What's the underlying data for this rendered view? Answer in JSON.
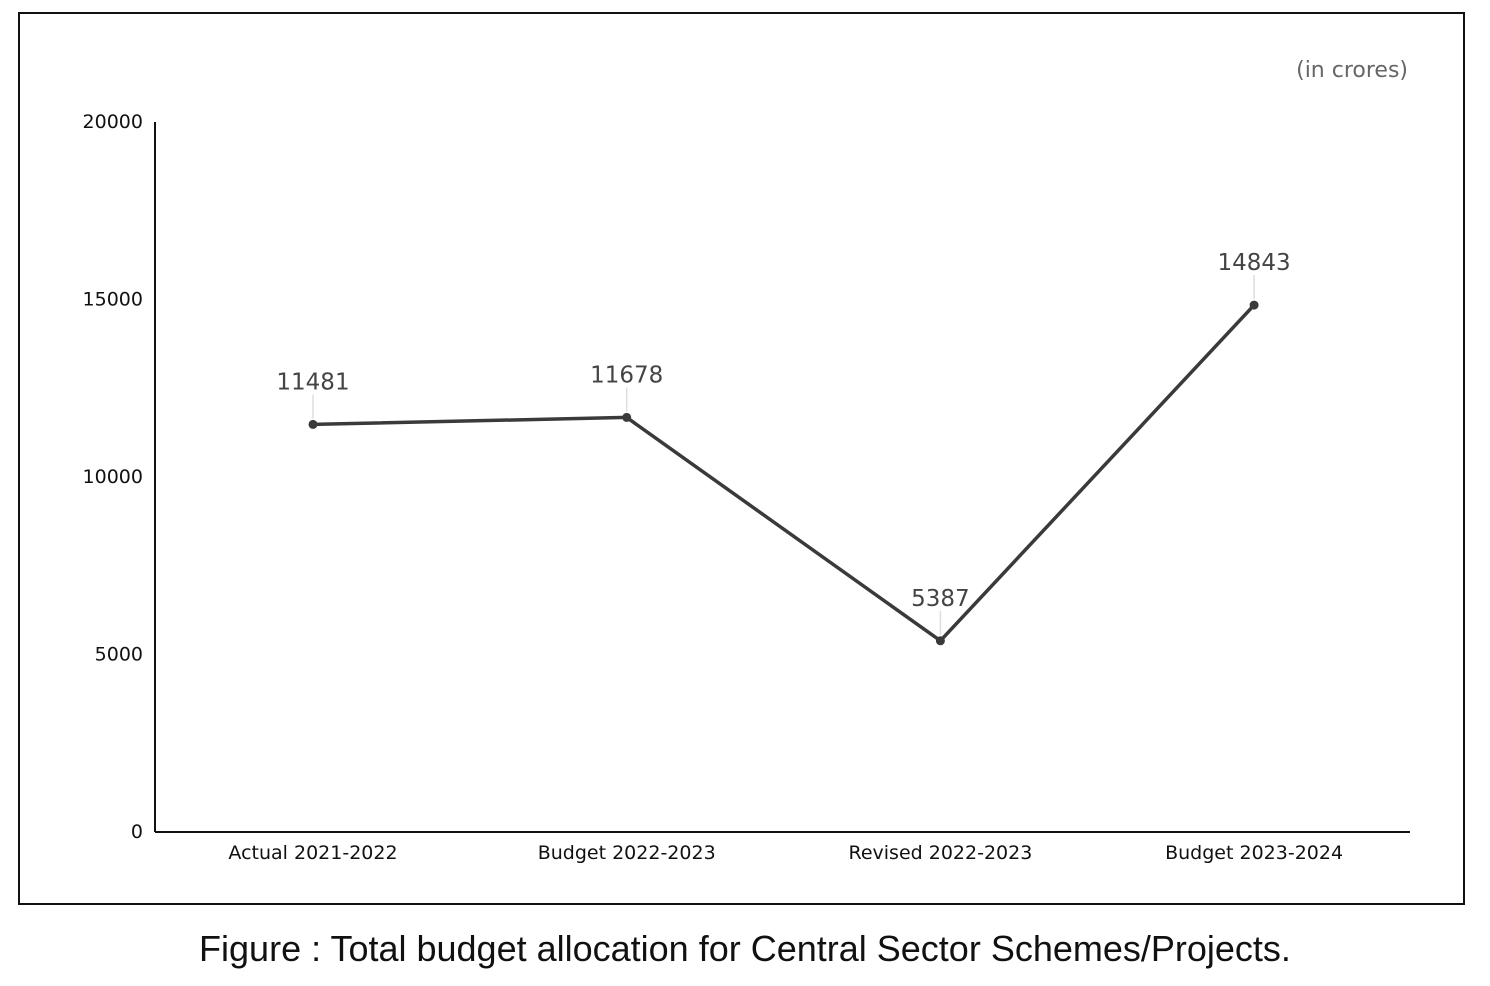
{
  "chart_data": {
    "type": "line",
    "title": "",
    "unit_note": "(in crores)",
    "xlabel": "",
    "ylabel": "",
    "categories": [
      "Actual 2021-2022",
      "Budget 2022-2023",
      "Revised 2022-2023",
      "Budget 2023-2024"
    ],
    "series": [
      {
        "name": "Total budget allocation",
        "values": [
          11481,
          11678,
          5387,
          14843
        ],
        "color": "#3a3a3a"
      }
    ],
    "ylim": [
      0,
      20000
    ],
    "yticks": [
      0,
      5000,
      10000,
      15000,
      20000
    ],
    "grid": false,
    "legend": "none",
    "caption": "Figure : Total budget allocation for Central Sector Schemes/Projects."
  }
}
